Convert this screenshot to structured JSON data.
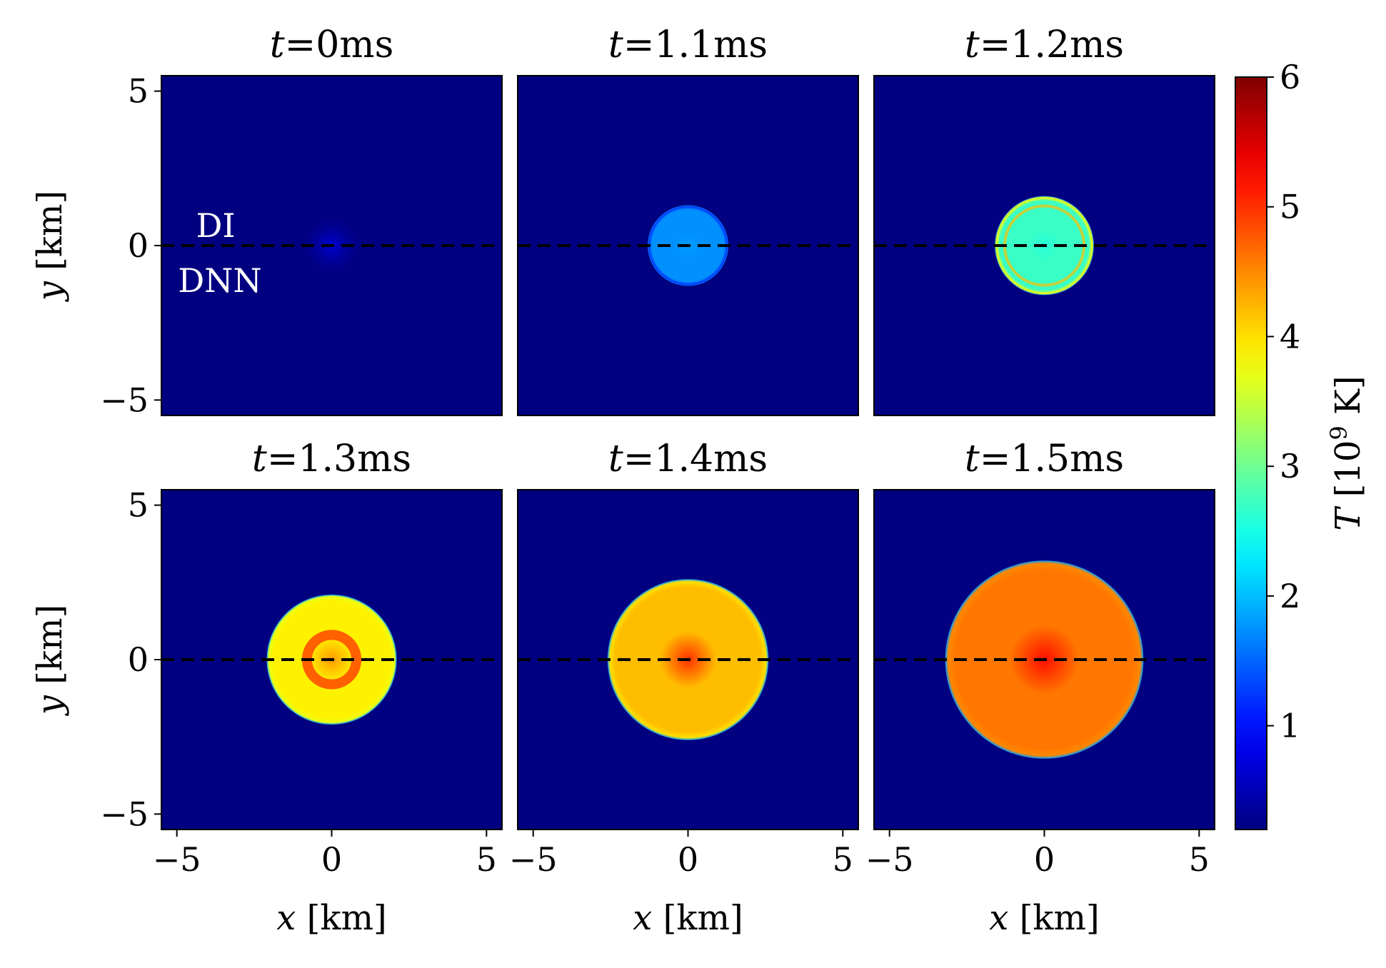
{
  "figure": {
    "panels": [
      {
        "time_var": "t",
        "time_value": "=0ms",
        "inner_temp": 0.7,
        "edge_temp": 0.7,
        "core_temp": 0.7,
        "radius_km": 1.1,
        "soft": true
      },
      {
        "time_var": "t",
        "time_value": "=1.1ms",
        "inner_temp": 1.75,
        "edge_temp": 1.2,
        "core_temp": 1.8,
        "radius_km": 1.3,
        "soft": false
      },
      {
        "time_var": "t",
        "time_value": "=1.2ms",
        "inner_temp": 2.7,
        "edge_temp": 3.8,
        "core_temp": 2.6,
        "radius_km": 1.6,
        "soft": false
      },
      {
        "time_var": "t",
        "time_value": "=1.3ms",
        "inner_temp": 3.9,
        "edge_temp": 3.7,
        "core_temp": 4.4,
        "radius_km": 2.1,
        "soft": false
      },
      {
        "time_var": "t",
        "time_value": "=1.4ms",
        "inner_temp": 4.2,
        "edge_temp": 4.0,
        "core_temp": 5.0,
        "radius_km": 2.6,
        "soft": false
      },
      {
        "time_var": "t",
        "time_value": "=1.5ms",
        "inner_temp": 4.6,
        "edge_temp": 4.5,
        "core_temp": 5.2,
        "radius_km": 3.2,
        "soft": false
      }
    ],
    "legend_top": "DI",
    "legend_bottom": "DNN",
    "y_axis_var": "y",
    "y_axis_unit": " [km]",
    "x_axis_var": "x",
    "x_axis_unit": " [km]",
    "colorbar_var": "T",
    "colorbar_unit_pre": " [10",
    "colorbar_unit_exp": "9",
    "colorbar_unit_post": " K]"
  },
  "chart_data": {
    "type": "heatmap",
    "x_range": [
      -5.5,
      5.5
    ],
    "y_range": [
      -5.5,
      5.5
    ],
    "x_ticks": [
      -5,
      0,
      5
    ],
    "y_ticks": [
      -5,
      0,
      5
    ],
    "x_tick_labels": [
      "−5",
      "0",
      "5"
    ],
    "y_tick_labels": [
      "−5",
      "0",
      "5"
    ],
    "colorbar": {
      "min": 0.2,
      "max": 6,
      "ticks": [
        1,
        2,
        3,
        4,
        5,
        6
      ],
      "tick_labels": [
        "1",
        "2",
        "3",
        "4",
        "5",
        "6"
      ],
      "colormap": "jet"
    },
    "divider_line_y": 0,
    "divider_line_style": "dashed",
    "divider_line_color": "#000000"
  }
}
